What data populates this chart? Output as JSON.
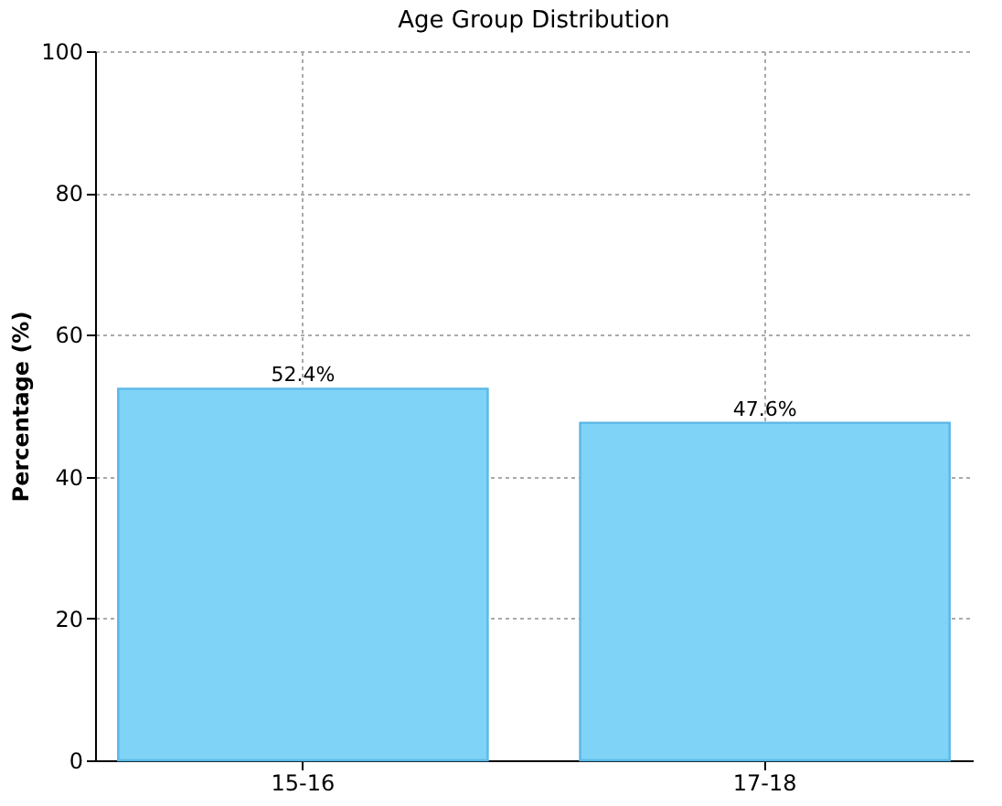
{
  "chart_data": {
    "type": "bar",
    "title": "Age Group Distribution",
    "ylabel": "Percentage (%)",
    "categories": [
      "15-16",
      "17-18"
    ],
    "values": [
      52.4,
      47.6
    ],
    "value_labels": [
      "52.4%",
      "47.6%"
    ],
    "color": "#7fd3f7",
    "ylim": [
      0,
      100
    ],
    "yticks": [
      0,
      20,
      40,
      60,
      80,
      100
    ],
    "grid": true
  }
}
